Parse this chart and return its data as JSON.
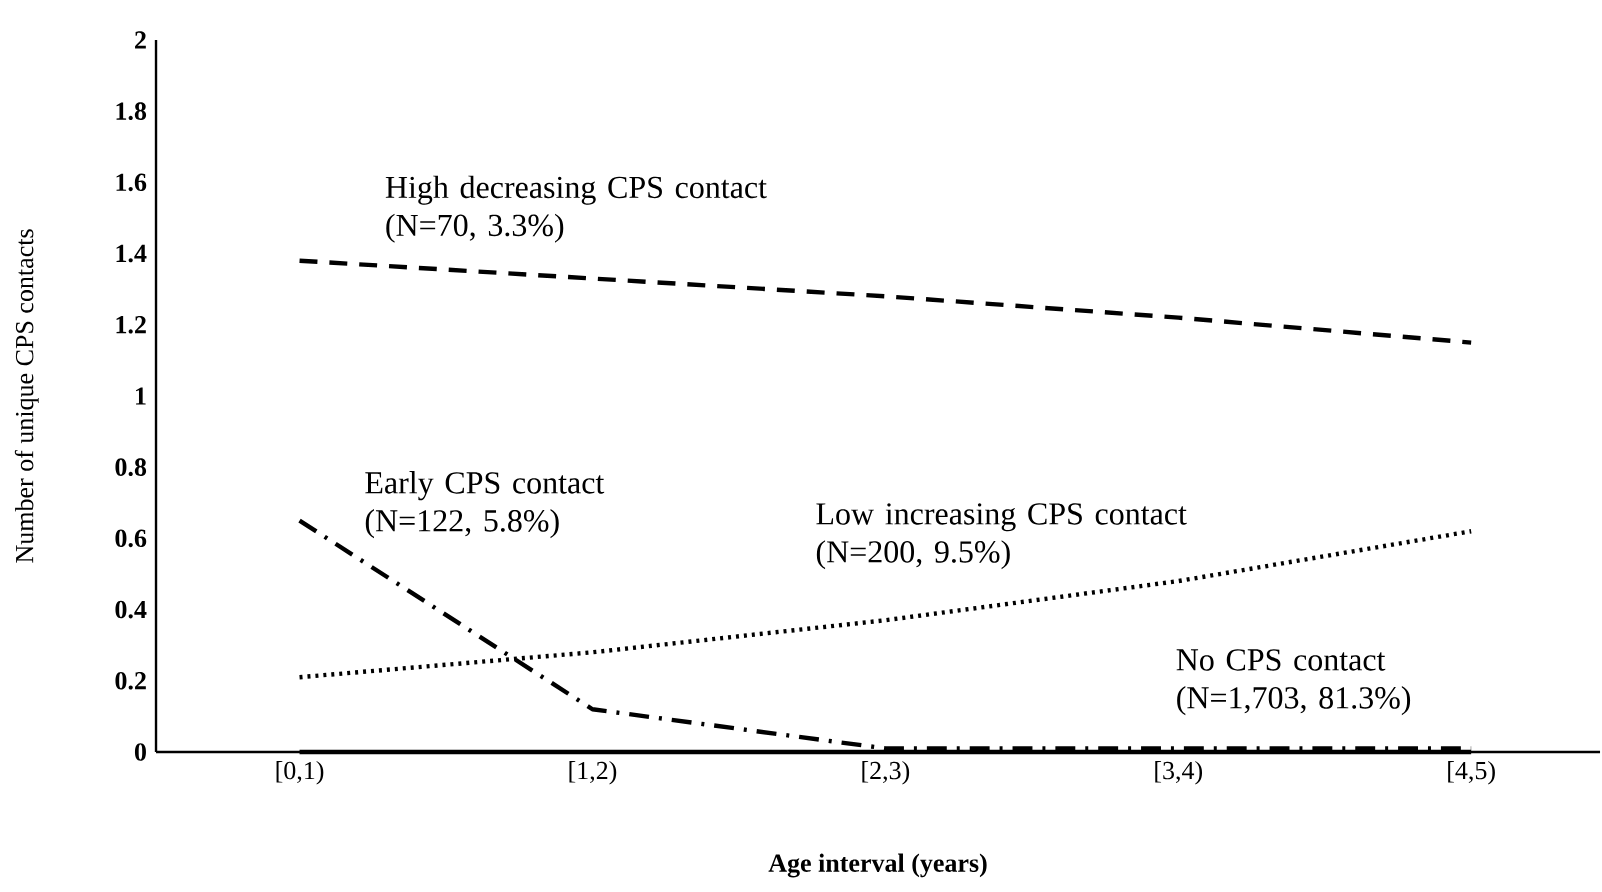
{
  "chart_data": {
    "type": "line",
    "xlabel": "Age interval (years)",
    "ylabel": "Number of unique CPS contacts",
    "categories": [
      "[0,1)",
      "[1,2)",
      "[2,3)",
      "[3,4)",
      "[4,5)"
    ],
    "series": [
      {
        "name": "High decreasing CPS contact (N=70, 3.3%)",
        "color": "#000000",
        "line_style": "dashed",
        "values": [
          1.38,
          1.33,
          1.28,
          1.22,
          1.15
        ]
      },
      {
        "name": "Early CPS contact (N=122, 5.8%)",
        "color": "#000000",
        "line_style": "dashdot",
        "values": [
          0.65,
          0.12,
          0.01,
          0.01,
          0.01
        ]
      },
      {
        "name": "Low increasing CPS contact (N=200, 9.5%)",
        "color": "#000000",
        "line_style": "dotted",
        "values": [
          0.21,
          0.28,
          0.37,
          0.48,
          0.62
        ]
      },
      {
        "name": "No CPS contact (N=1,703, 81.3%)",
        "color": "#000000",
        "line_style": "solid",
        "values": [
          0,
          0,
          0,
          0,
          0
        ]
      }
    ],
    "ylim": [
      0,
      2
    ],
    "yticks": [
      0,
      0.2,
      0.4,
      0.6,
      0.8,
      1,
      1.2,
      1.4,
      1.6,
      1.8,
      2
    ],
    "grid": false
  }
}
